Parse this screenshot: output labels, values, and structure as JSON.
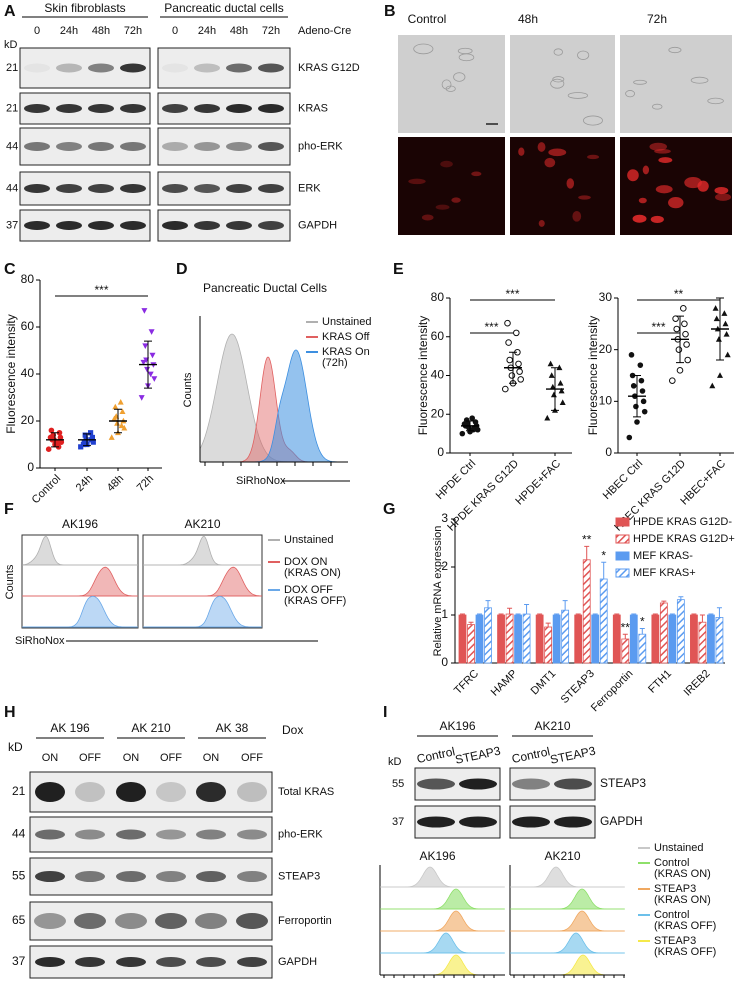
{
  "panels": {
    "A": {
      "label": "A",
      "groups": [
        "Skin fibroblasts",
        "Pancreatic ductal cells"
      ],
      "lanes": [
        "0",
        "24h",
        "48h",
        "72h",
        "0",
        "24h",
        "48h",
        "72h"
      ],
      "treatment": "Adeno-Cre",
      "kd_label": "kD",
      "rows": [
        {
          "kd": 21,
          "name": "KRAS G12D"
        },
        {
          "kd": 21,
          "name": "KRAS"
        },
        {
          "kd": 44,
          "name": "pho-ERK"
        },
        {
          "kd": 44,
          "name": "ERK"
        },
        {
          "kd": 37,
          "name": "GAPDH"
        }
      ]
    },
    "B": {
      "label": "B",
      "columns": [
        "Control",
        "48h",
        "72h"
      ]
    },
    "C": {
      "label": "C",
      "type": "scatter",
      "y_label": "Fluorescence intensity",
      "categories": [
        "Control",
        "24h",
        "48h",
        "72h"
      ],
      "colors": [
        "#e02020",
        "#2040d0",
        "#f0a030",
        "#8a2be2"
      ],
      "points": [
        [
          8,
          10,
          11,
          12,
          13,
          14,
          15,
          12,
          9,
          16,
          11,
          13
        ],
        [
          9,
          10,
          11,
          12,
          13,
          14,
          12,
          11,
          15,
          10
        ],
        [
          13,
          15,
          17,
          19,
          20,
          22,
          24,
          26,
          18,
          21,
          28
        ],
        [
          30,
          35,
          38,
          42,
          44,
          46,
          48,
          52,
          58,
          67,
          40,
          45
        ]
      ],
      "mean": [
        12,
        12,
        20,
        44
      ],
      "sd": [
        3,
        2.5,
        5,
        10
      ],
      "ylim": [
        0,
        80
      ],
      "yticks": [
        0,
        20,
        40,
        60,
        80
      ],
      "significance": [
        {
          "between": [
            0,
            3
          ],
          "label": "***"
        }
      ]
    },
    "D": {
      "label": "D",
      "title": "Pancreatic Ductal Cells",
      "y_label": "Counts",
      "x_label": "SiRhoNox",
      "legend": [
        {
          "lines": [
            "Unstained"
          ],
          "color": "#b0b0b0"
        },
        {
          "lines": [
            "KRAS Off"
          ],
          "color": "#e06060"
        },
        {
          "lines": [
            "KRAS On",
            "(72h)"
          ],
          "color": "#3d8fe0"
        }
      ]
    },
    "E": {
      "label": "E",
      "plots": [
        {
          "type": "scatter",
          "y_label": "Fluorescence intensity",
          "categories": [
            "HPDE Ctrl",
            "HPDE KRAS G12D",
            "HPDE+FAC"
          ],
          "points": [
            [
              10,
              11,
              12,
              13,
              14,
              15,
              16,
              17,
              13,
              14,
              12,
              15,
              18
            ],
            [
              33,
              36,
              38,
              40,
              42,
              44,
              46,
              48,
              52,
              57,
              62,
              67
            ],
            [
              18,
              22,
              26,
              30,
              32,
              34,
              36,
              40,
              44,
              46
            ]
          ],
          "mean": [
            14,
            44,
            33
          ],
          "sd": [
            2.5,
            8,
            11
          ],
          "ylim": [
            0,
            80
          ],
          "yticks": [
            0,
            20,
            40,
            60,
            80
          ],
          "significance": [
            {
              "between": [
                0,
                1
              ],
              "label": "***"
            },
            {
              "between": [
                0,
                2
              ],
              "label": "***"
            }
          ]
        },
        {
          "type": "scatter",
          "y_label": "Fluorescence intensity",
          "categories": [
            "HBEC Ctrl",
            "HBEC KRAS G12D",
            "HBEC+FAC"
          ],
          "points": [
            [
              3,
              6,
              8,
              9,
              10,
              11,
              12,
              13,
              14,
              15,
              17,
              19
            ],
            [
              14,
              16,
              18,
              20,
              21,
              22,
              23,
              24,
              25,
              26,
              28
            ],
            [
              13,
              15,
              19,
              22,
              23,
              24,
              25,
              26,
              27,
              28
            ]
          ],
          "mean": [
            11,
            22,
            24
          ],
          "sd": [
            4,
            4.5,
            6
          ],
          "ylim": [
            0,
            30
          ],
          "yticks": [
            0,
            10,
            20,
            30
          ],
          "significance": [
            {
              "between": [
                0,
                1
              ],
              "label": "***"
            },
            {
              "between": [
                0,
                2
              ],
              "label": "**"
            }
          ]
        }
      ]
    },
    "F": {
      "label": "F",
      "samples": [
        "AK196",
        "AK210"
      ],
      "y_label": "Counts",
      "x_label": "SiRhoNox",
      "legend": [
        {
          "lines": [
            "Unstained"
          ],
          "color": "#b0b0b0"
        },
        {
          "lines": [
            "DOX ON",
            "(KRAS ON)"
          ],
          "color": "#e06060"
        },
        {
          "lines": [
            "DOX OFF",
            "(KRAS OFF)"
          ],
          "color": "#6aa8e8"
        }
      ]
    },
    "G": {
      "label": "G",
      "type": "bar",
      "y_label": "Relative mRNA expression",
      "categories": [
        "TFRC",
        "HAMP",
        "DMT1",
        "STEAP3",
        "Ferroportin",
        "FTH1",
        "IREB2"
      ],
      "ylim": [
        0,
        3
      ],
      "yticks": [
        0,
        1,
        2,
        3
      ],
      "series": [
        {
          "name": "HPDE KRAS G12D-",
          "color": "#e05555",
          "hatched": false,
          "values": [
            1,
            1,
            1,
            1,
            1,
            1,
            1
          ],
          "errors": [
            0.02,
            0.02,
            0.02,
            0.02,
            0.02,
            0.02,
            0.02
          ],
          "annotations": [
            null,
            null,
            null,
            null,
            null,
            null,
            null
          ]
        },
        {
          "name": "HPDE KRAS G12D+",
          "color": "#e05555",
          "hatched": true,
          "values": [
            0.8,
            1.02,
            0.75,
            2.15,
            0.5,
            1.25,
            0.85
          ],
          "errors": [
            0.05,
            0.12,
            0.08,
            0.28,
            0.1,
            0.04,
            0.15
          ],
          "annotations": [
            null,
            null,
            null,
            "**",
            "**",
            null,
            null
          ]
        },
        {
          "name": "MEF KRAS-",
          "color": "#5b9bf0",
          "hatched": false,
          "values": [
            1,
            1,
            1,
            1,
            1,
            1,
            1
          ],
          "errors": [
            0.02,
            0.02,
            0.02,
            0.02,
            0.02,
            0.02,
            0.02
          ],
          "annotations": [
            null,
            null,
            null,
            null,
            null,
            null,
            null
          ]
        },
        {
          "name": "MEF KRAS+",
          "color": "#5b9bf0",
          "hatched": true,
          "values": [
            1.15,
            1.02,
            1.1,
            1.75,
            0.6,
            1.32,
            0.95
          ],
          "errors": [
            0.15,
            0.2,
            0.2,
            0.35,
            0.12,
            0.06,
            0.2
          ],
          "annotations": [
            null,
            null,
            null,
            "*",
            "*",
            null,
            null
          ]
        }
      ]
    },
    "H": {
      "label": "H",
      "groups": [
        "AK 196",
        "AK 210",
        "AK 38"
      ],
      "lanes": [
        "ON",
        "OFF",
        "ON",
        "OFF",
        "ON",
        "OFF"
      ],
      "treatment": "Dox",
      "kd_label": "kD",
      "rows": [
        {
          "kd": 21,
          "name": "Total KRAS"
        },
        {
          "kd": 44,
          "name": "pho-ERK"
        },
        {
          "kd": 55,
          "name": "STEAP3"
        },
        {
          "kd": 65,
          "name": "Ferroportin"
        },
        {
          "kd": 37,
          "name": "GAPDH"
        }
      ]
    },
    "I": {
      "label": "I",
      "groups": [
        "AK196",
        "AK210"
      ],
      "lanes": [
        "Control",
        "STEAP3",
        "Control",
        "STEAP3"
      ],
      "kd_label": "kD",
      "rows": [
        {
          "kd": 55,
          "name": "STEAP3"
        },
        {
          "kd": 37,
          "name": "GAPDH"
        }
      ],
      "histogram_titles": [
        "AK196",
        "AK210"
      ],
      "legend": [
        {
          "lines": [
            "Unstained"
          ],
          "color": "#c8c8c8"
        },
        {
          "lines": [
            "Control",
            "(KRAS ON)"
          ],
          "color": "#8ee06a"
        },
        {
          "lines": [
            "STEAP3",
            "(KRAS ON)"
          ],
          "color": "#f0a860"
        },
        {
          "lines": [
            "Control",
            "(KRAS OFF)"
          ],
          "color": "#6cc0ea"
        },
        {
          "lines": [
            "STEAP3",
            "(KRAS OFF)"
          ],
          "color": "#f5e94a"
        }
      ]
    }
  }
}
